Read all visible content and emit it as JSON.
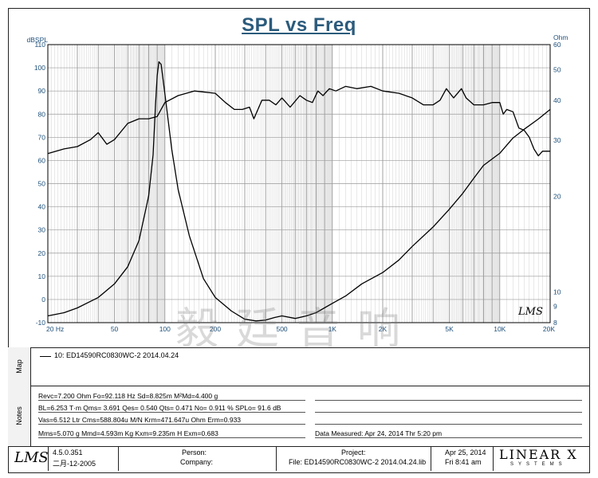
{
  "colors": {
    "title": "#2b5b7c",
    "curve": "#000000",
    "grid": "#b8b8b8"
  },
  "chart_data": {
    "type": "line",
    "title": "SPL vs Freq",
    "ylabel_left": "dBSPL",
    "ylabel_right": "Ohm",
    "x_scale": "log",
    "xlim": [
      20,
      20000
    ],
    "ylim_left": [
      -10,
      110
    ],
    "ylim_right": [
      8,
      60
    ],
    "y_ticks_left": [
      "110",
      "100",
      "90",
      "80",
      "70",
      "60",
      "50",
      "40",
      "30",
      "20",
      "10",
      "0",
      "-10"
    ],
    "y_ticks_right": [
      "60",
      "50",
      "40",
      "30",
      "20",
      "10",
      "9",
      "8"
    ],
    "x_ticks": [
      {
        "value": 20,
        "label": "20 Hz"
      },
      {
        "value": 50,
        "label": "50"
      },
      {
        "value": 100,
        "label": "100"
      },
      {
        "value": 200,
        "label": "200"
      },
      {
        "value": 500,
        "label": "500"
      },
      {
        "value": 1000,
        "label": "1K"
      },
      {
        "value": 2000,
        "label": "2K"
      },
      {
        "value": 5000,
        "label": "5K"
      },
      {
        "value": 10000,
        "label": "10K"
      },
      {
        "value": 20000,
        "label": "20K"
      }
    ],
    "series": [
      {
        "name": "SPL",
        "axis": "left",
        "points": [
          [
            20,
            63
          ],
          [
            25,
            65
          ],
          [
            30,
            66
          ],
          [
            36,
            69
          ],
          [
            40,
            72
          ],
          [
            45,
            67
          ],
          [
            50,
            69
          ],
          [
            60,
            76
          ],
          [
            70,
            78
          ],
          [
            80,
            78
          ],
          [
            90,
            79
          ],
          [
            100,
            85
          ],
          [
            120,
            88
          ],
          [
            150,
            90
          ],
          [
            200,
            89
          ],
          [
            230,
            85
          ],
          [
            260,
            82
          ],
          [
            290,
            82
          ],
          [
            320,
            83
          ],
          [
            340,
            78
          ],
          [
            380,
            86
          ],
          [
            420,
            86
          ],
          [
            460,
            84
          ],
          [
            500,
            87
          ],
          [
            560,
            83
          ],
          [
            640,
            88
          ],
          [
            700,
            86
          ],
          [
            760,
            85
          ],
          [
            820,
            90
          ],
          [
            880,
            88
          ],
          [
            960,
            91
          ],
          [
            1050,
            90
          ],
          [
            1200,
            92
          ],
          [
            1400,
            91
          ],
          [
            1700,
            92
          ],
          [
            2000,
            90
          ],
          [
            2500,
            89
          ],
          [
            3000,
            87
          ],
          [
            3500,
            84
          ],
          [
            4000,
            84
          ],
          [
            4400,
            86
          ],
          [
            4800,
            91
          ],
          [
            5300,
            87
          ],
          [
            5900,
            91
          ],
          [
            6300,
            87
          ],
          [
            7000,
            84
          ],
          [
            8000,
            84
          ],
          [
            9000,
            85
          ],
          [
            10000,
            85
          ],
          [
            10500,
            80
          ],
          [
            11000,
            82
          ],
          [
            12000,
            81
          ],
          [
            13000,
            74
          ],
          [
            14000,
            73
          ],
          [
            15000,
            70
          ],
          [
            16000,
            65
          ],
          [
            17000,
            62
          ],
          [
            18000,
            64
          ],
          [
            20000,
            64
          ]
        ]
      },
      {
        "name": "Impedance",
        "axis": "right",
        "points": [
          [
            20,
            8.4
          ],
          [
            25,
            8.6
          ],
          [
            30,
            8.9
          ],
          [
            40,
            9.6
          ],
          [
            50,
            10.6
          ],
          [
            60,
            12
          ],
          [
            70,
            14.5
          ],
          [
            80,
            20
          ],
          [
            85,
            27
          ],
          [
            88,
            39
          ],
          [
            90,
            48
          ],
          [
            92.1,
            53
          ],
          [
            95,
            52
          ],
          [
            100,
            42
          ],
          [
            110,
            28
          ],
          [
            120,
            21
          ],
          [
            140,
            15
          ],
          [
            170,
            11
          ],
          [
            200,
            9.6
          ],
          [
            250,
            8.7
          ],
          [
            300,
            8.2
          ],
          [
            350,
            8.1
          ],
          [
            400,
            8.15
          ],
          [
            450,
            8.3
          ],
          [
            500,
            8.4
          ],
          [
            600,
            8.25
          ],
          [
            700,
            8.4
          ],
          [
            800,
            8.6
          ],
          [
            1000,
            9.2
          ],
          [
            1200,
            9.7
          ],
          [
            1500,
            10.6
          ],
          [
            2000,
            11.5
          ],
          [
            2500,
            12.6
          ],
          [
            3000,
            13.9
          ],
          [
            4000,
            16
          ],
          [
            5000,
            18.2
          ],
          [
            6000,
            20.4
          ],
          [
            7000,
            22.8
          ],
          [
            8000,
            25
          ],
          [
            10000,
            27.3
          ],
          [
            12000,
            30.5
          ],
          [
            14000,
            32.5
          ],
          [
            17000,
            35
          ],
          [
            20000,
            37.5
          ]
        ]
      }
    ]
  },
  "map": {
    "side_label": "Map",
    "legend": "10: ED14590RC0830WC-2   2014.04.24"
  },
  "notes": {
    "side_label": "Notes",
    "lines": [
      "Revc=7.200 Ohm  Fo=92.118 Hz  Sd=8.825m M²Md=4.400 g",
      "BL=6.253 T·m  Qms= 3.691  Qes= 0.540  Qts= 0.471  No= 0.911 %  SPLo= 91.6 dB",
      "Vas=6.512 Ltr  Cms=588.804u M/N  Krm=471.647u Ohm  Erm=0.933",
      "Mms=5.070 g  Mmd=4.593m Kg  Kxm=9.235m H  Exm=0.683"
    ],
    "measured": "Data Measured: Apr 24, 2014   Thr  5:20 pm"
  },
  "footer": {
    "logo": "LMS",
    "version": "4.5.0.351",
    "build_date": "二月-12-2005",
    "person_label": "Person:",
    "company_label": "Company:",
    "project_label": "Project:",
    "file_label": "File: ED14590RC0830WC-2 2014.04.24.lib",
    "date": "Apr 25, 2014",
    "time": "Fri  8:41 am",
    "brand": "LINEAR X",
    "brand_sub": "SYSTEMS"
  },
  "chart_logo": "LMS",
  "watermark": "毅廷音响"
}
